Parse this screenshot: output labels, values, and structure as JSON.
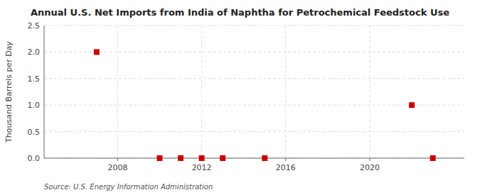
{
  "chart_data": {
    "type": "scatter",
    "title": "Annual U.S. Net Imports from India of Naphtha for Petrochemical Feedstock Use",
    "y_label": "Thousand Barrels per Day",
    "annotations": [
      "Source: U.S. Energy Information Administration"
    ],
    "x": [
      2007,
      2010,
      2011,
      2012,
      2013,
      2015,
      2022,
      2023
    ],
    "values": [
      2.0,
      0.0,
      0.0,
      0.0,
      0.0,
      0.0,
      1.0,
      0.0
    ],
    "color": "#cc0000",
    "marker": "square",
    "xlim": [
      2004.5,
      2024.5
    ],
    "xticks": [
      2008,
      2012,
      2016,
      2020
    ],
    "ylim": [
      0.0,
      2.5
    ],
    "yticks": [
      {
        "value": 0.0,
        "label": "0.0"
      },
      {
        "value": 0.5,
        "label": "0.5"
      },
      {
        "value": 1.0,
        "label": "1.0"
      },
      {
        "value": 1.5,
        "label": "1.5"
      },
      {
        "value": 2.0,
        "label": "2.0"
      },
      {
        "value": 2.5,
        "label": "2.5"
      }
    ],
    "grid": true
  }
}
